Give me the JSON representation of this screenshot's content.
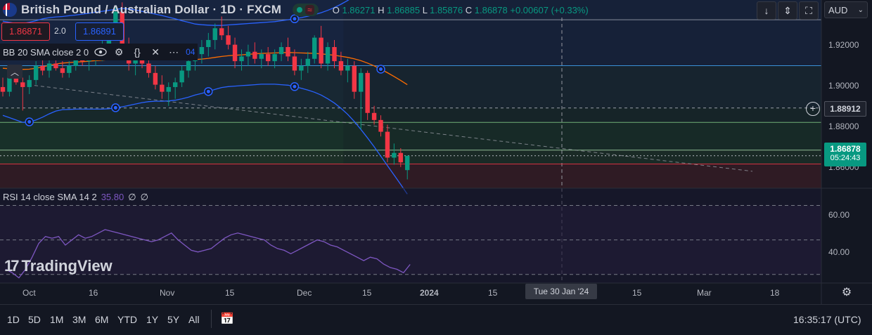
{
  "header": {
    "symbol_title": "British Pound / Australian Dollar · 1D · FXCM",
    "ohlc": [
      {
        "k": "O",
        "v": "1.86271"
      },
      {
        "k": "H",
        "v": "1.86885"
      },
      {
        "k": "L",
        "v": "1.85876"
      },
      {
        "k": "C",
        "v": "1.86878"
      }
    ],
    "change": "+0.00607 (+0.33%)"
  },
  "quote": {
    "bid": "1.86871",
    "spread": "2.0",
    "ask": "1.86891"
  },
  "bb_legend": {
    "label": "BB 20 SMA close 2 0",
    "value_fragment": "04"
  },
  "toolbar": {
    "currency": "AUD"
  },
  "price_axis": {
    "labels": [
      "1.92000",
      "1.90000",
      "1.88000",
      "1.86000"
    ],
    "crosshair_price": "1.88912",
    "last_price": "1.86878",
    "countdown": "05:24:43"
  },
  "rsi": {
    "label": "RSI 14 close SMA 14 2",
    "value": "35.80",
    "extra1": "∅",
    "extra2": "∅",
    "axis_labels": [
      "60.00",
      "40.00"
    ]
  },
  "time_axis": {
    "labels": [
      "Oct",
      "16",
      "Nov",
      "15",
      "Dec",
      "15",
      "2024",
      "15",
      "15",
      "Mar",
      "18"
    ],
    "crosshair_date": "Tue 30 Jan '24"
  },
  "logo": "TradingView",
  "periods": [
    "1D",
    "5D",
    "1M",
    "3M",
    "6M",
    "YTD",
    "1Y",
    "5Y",
    "All"
  ],
  "clock": "16:35:17 (UTC)",
  "colors": {
    "up": "#089981",
    "down": "#f23645",
    "bb": "#2962ff",
    "basis": "#ff6d00",
    "rsi": "#7e57c2",
    "bg": "#131722"
  },
  "chart_data": {
    "type": "candlestick",
    "instrument": "GBP/AUD",
    "ylim": [
      1.855,
      1.935
    ],
    "candles": [
      {
        "o": 1.898,
        "h": 1.902,
        "l": 1.894,
        "c": 1.896
      },
      {
        "o": 1.896,
        "h": 1.904,
        "l": 1.894,
        "c": 1.902
      },
      {
        "o": 1.902,
        "h": 1.906,
        "l": 1.899,
        "c": 1.9
      },
      {
        "o": 1.9,
        "h": 1.902,
        "l": 1.888,
        "c": 1.898
      },
      {
        "o": 1.898,
        "h": 1.903,
        "l": 1.895,
        "c": 1.901
      },
      {
        "o": 1.901,
        "h": 1.909,
        "l": 1.899,
        "c": 1.907
      },
      {
        "o": 1.907,
        "h": 1.912,
        "l": 1.903,
        "c": 1.905
      },
      {
        "o": 1.905,
        "h": 1.91,
        "l": 1.902,
        "c": 1.908
      },
      {
        "o": 1.908,
        "h": 1.914,
        "l": 1.905,
        "c": 1.906
      },
      {
        "o": 1.906,
        "h": 1.909,
        "l": 1.902,
        "c": 1.904
      },
      {
        "o": 1.904,
        "h": 1.909,
        "l": 1.902,
        "c": 1.907
      },
      {
        "o": 1.907,
        "h": 1.913,
        "l": 1.905,
        "c": 1.911
      },
      {
        "o": 1.911,
        "h": 1.915,
        "l": 1.907,
        "c": 1.909
      },
      {
        "o": 1.909,
        "h": 1.912,
        "l": 1.905,
        "c": 1.91
      },
      {
        "o": 1.91,
        "h": 1.915,
        "l": 1.907,
        "c": 1.913
      },
      {
        "o": 1.913,
        "h": 1.918,
        "l": 1.909,
        "c": 1.916
      },
      {
        "o": 1.916,
        "h": 1.925,
        "l": 1.913,
        "c": 1.922
      },
      {
        "o": 1.922,
        "h": 1.932,
        "l": 1.919,
        "c": 1.93
      },
      {
        "o": 1.93,
        "h": 1.934,
        "l": 1.912,
        "c": 1.916
      },
      {
        "o": 1.916,
        "h": 1.919,
        "l": 1.905,
        "c": 1.908
      },
      {
        "o": 1.908,
        "h": 1.912,
        "l": 1.903,
        "c": 1.91
      },
      {
        "o": 1.91,
        "h": 1.914,
        "l": 1.906,
        "c": 1.908
      },
      {
        "o": 1.908,
        "h": 1.911,
        "l": 1.902,
        "c": 1.904
      },
      {
        "o": 1.904,
        "h": 1.907,
        "l": 1.897,
        "c": 1.899
      },
      {
        "o": 1.899,
        "h": 1.903,
        "l": 1.893,
        "c": 1.896
      },
      {
        "o": 1.896,
        "h": 1.9,
        "l": 1.89,
        "c": 1.898
      },
      {
        "o": 1.898,
        "h": 1.902,
        "l": 1.893,
        "c": 1.9
      },
      {
        "o": 1.9,
        "h": 1.907,
        "l": 1.898,
        "c": 1.905
      },
      {
        "o": 1.905,
        "h": 1.912,
        "l": 1.902,
        "c": 1.909
      },
      {
        "o": 1.909,
        "h": 1.914,
        "l": 1.905,
        "c": 1.912
      },
      {
        "o": 1.912,
        "h": 1.918,
        "l": 1.908,
        "c": 1.915
      },
      {
        "o": 1.915,
        "h": 1.921,
        "l": 1.911,
        "c": 1.918
      },
      {
        "o": 1.918,
        "h": 1.925,
        "l": 1.914,
        "c": 1.923
      },
      {
        "o": 1.923,
        "h": 1.928,
        "l": 1.918,
        "c": 1.92
      },
      {
        "o": 1.92,
        "h": 1.924,
        "l": 1.914,
        "c": 1.916
      },
      {
        "o": 1.916,
        "h": 1.919,
        "l": 1.906,
        "c": 1.909
      },
      {
        "o": 1.909,
        "h": 1.914,
        "l": 1.905,
        "c": 1.911
      },
      {
        "o": 1.911,
        "h": 1.916,
        "l": 1.907,
        "c": 1.913
      },
      {
        "o": 1.913,
        "h": 1.917,
        "l": 1.908,
        "c": 1.91
      },
      {
        "o": 1.91,
        "h": 1.914,
        "l": 1.906,
        "c": 1.912
      },
      {
        "o": 1.912,
        "h": 1.915,
        "l": 1.907,
        "c": 1.909
      },
      {
        "o": 1.909,
        "h": 1.914,
        "l": 1.906,
        "c": 1.912
      },
      {
        "o": 1.912,
        "h": 1.917,
        "l": 1.909,
        "c": 1.915
      },
      {
        "o": 1.915,
        "h": 1.919,
        "l": 1.909,
        "c": 1.911
      },
      {
        "o": 1.911,
        "h": 1.914,
        "l": 1.903,
        "c": 1.905
      },
      {
        "o": 1.905,
        "h": 1.91,
        "l": 1.901,
        "c": 1.907
      },
      {
        "o": 1.907,
        "h": 1.913,
        "l": 1.904,
        "c": 1.91
      },
      {
        "o": 1.91,
        "h": 1.92,
        "l": 1.908,
        "c": 1.919
      },
      {
        "o": 1.919,
        "h": 1.924,
        "l": 1.906,
        "c": 1.908
      },
      {
        "o": 1.908,
        "h": 1.917,
        "l": 1.905,
        "c": 1.915
      },
      {
        "o": 1.915,
        "h": 1.918,
        "l": 1.906,
        "c": 1.909
      },
      {
        "o": 1.909,
        "h": 1.913,
        "l": 1.903,
        "c": 1.905
      },
      {
        "o": 1.905,
        "h": 1.91,
        "l": 1.9,
        "c": 1.907
      },
      {
        "o": 1.907,
        "h": 1.909,
        "l": 1.893,
        "c": 1.896
      },
      {
        "o": 1.896,
        "h": 1.906,
        "l": 1.88,
        "c": 1.904
      },
      {
        "o": 1.904,
        "h": 1.905,
        "l": 1.884,
        "c": 1.887
      },
      {
        "o": 1.887,
        "h": 1.89,
        "l": 1.882,
        "c": 1.884
      },
      {
        "o": 1.884,
        "h": 1.886,
        "l": 1.877,
        "c": 1.879
      },
      {
        "o": 1.879,
        "h": 1.882,
        "l": 1.866,
        "c": 1.868
      },
      {
        "o": 1.868,
        "h": 1.874,
        "l": 1.865,
        "c": 1.87
      },
      {
        "o": 1.87,
        "h": 1.872,
        "l": 1.864,
        "c": 1.866
      },
      {
        "o": 1.8627,
        "h": 1.86885,
        "l": 1.85876,
        "c": 1.86878
      }
    ],
    "bollinger_upper": [
      1.926,
      1.9255,
      1.925,
      1.925,
      1.9255,
      1.9262,
      1.927,
      1.9275,
      1.9278,
      1.928,
      1.9283,
      1.9286,
      1.929,
      1.9294,
      1.9298,
      1.9302,
      1.9306,
      1.931,
      1.9314,
      1.9312,
      1.9308,
      1.9302,
      1.9296,
      1.929,
      1.9284,
      1.9277,
      1.927,
      1.9262,
      1.9255,
      1.9248,
      1.9245,
      1.9243,
      1.9242,
      1.9242,
      1.9244,
      1.9246,
      1.9248,
      1.925,
      1.9252,
      1.9254,
      1.9256,
      1.9258,
      1.9262,
      1.9266,
      1.927,
      1.9275,
      1.9281,
      1.9288,
      1.9296,
      1.9306,
      1.9318,
      1.9332,
      1.9348,
      1.9366,
      1.9384,
      1.94,
      1.9414,
      1.9426,
      1.9436,
      1.9444,
      1.945,
      1.9455
    ],
    "bollinger_basis": [
      1.906,
      1.9058,
      1.9056,
      1.9055,
      1.9056,
      1.906,
      1.9066,
      1.9072,
      1.9078,
      1.9082,
      1.9084,
      1.9086,
      1.9088,
      1.909,
      1.9092,
      1.9094,
      1.9097,
      1.9101,
      1.9105,
      1.9107,
      1.9108,
      1.9108,
      1.9107,
      1.9105,
      1.9102,
      1.9099,
      1.9097,
      1.9096,
      1.9096,
      1.9097,
      1.9099,
      1.9102,
      1.9106,
      1.911,
      1.9113,
      1.9115,
      1.9117,
      1.9119,
      1.9121,
      1.9123,
      1.9124,
      1.9125,
      1.9126,
      1.9127,
      1.9126,
      1.9125,
      1.9124,
      1.9123,
      1.9121,
      1.9118,
      1.9115,
      1.9111,
      1.9106,
      1.91,
      1.9092,
      1.9082,
      1.907,
      1.9056,
      1.9041,
      1.9025,
      1.9008,
      1.899
    ],
    "bollinger_lower": [
      1.886,
      1.885,
      1.884,
      1.883,
      1.8832,
      1.884,
      1.8852,
      1.8866,
      1.8878,
      1.8884,
      1.8885,
      1.8886,
      1.8886,
      1.8886,
      1.8886,
      1.8886,
      1.8888,
      1.8892,
      1.8896,
      1.8902,
      1.8908,
      1.8914,
      1.8918,
      1.892,
      1.892,
      1.8921,
      1.8924,
      1.893,
      1.8937,
      1.8946,
      1.8953,
      1.8961,
      1.897,
      1.8978,
      1.8982,
      1.8984,
      1.8986,
      1.8988,
      1.899,
      1.8992,
      1.8992,
      1.8992,
      1.899,
      1.8988,
      1.8982,
      1.8975,
      1.8967,
      1.8958,
      1.8946,
      1.893,
      1.8912,
      1.889,
      1.8864,
      1.8834,
      1.88,
      1.8764,
      1.8726,
      1.8686,
      1.8646,
      1.8606,
      1.8566,
      1.8525
    ],
    "horizontal_levels": [
      1.9266,
      1.9071,
      1.8891,
      1.883,
      1.8712,
      1.8688,
      1.8653
    ],
    "rsi_ylim": [
      25,
      80
    ],
    "rsi_levels": [
      70,
      50,
      30
    ],
    "rsi_values": [
      33,
      31,
      28,
      33,
      40,
      48,
      52,
      51,
      52,
      47,
      50,
      53,
      51,
      52,
      54,
      56,
      55,
      54,
      53,
      52,
      51,
      50,
      49,
      50,
      52,
      54,
      50,
      47,
      44,
      43,
      44,
      45,
      48,
      51,
      53,
      54,
      53,
      52,
      51,
      50,
      47,
      45,
      44,
      42,
      44,
      46,
      48,
      50,
      49,
      47,
      46,
      44,
      42,
      40,
      38,
      40,
      39,
      36,
      34,
      33,
      31,
      35.8
    ]
  }
}
